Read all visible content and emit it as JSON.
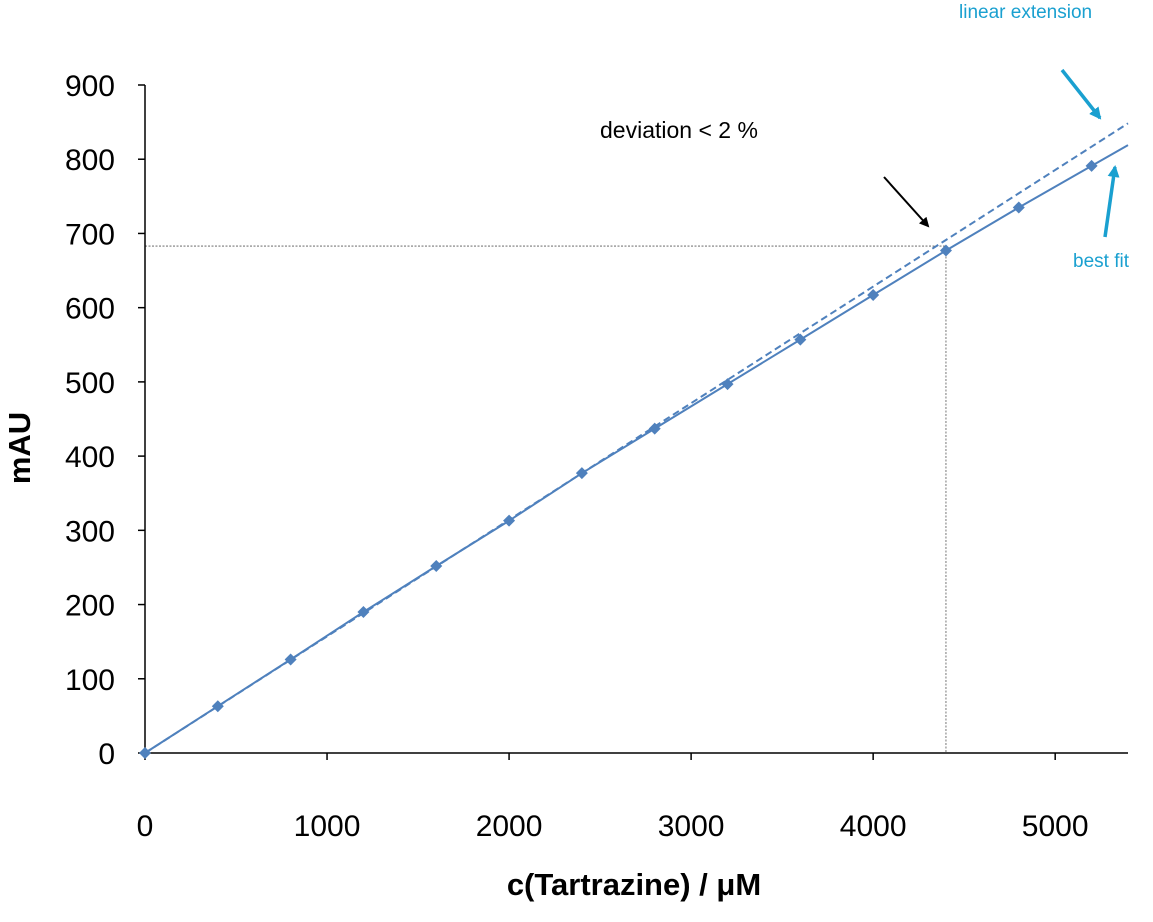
{
  "chart_data": {
    "type": "scatter",
    "xlabel": "c(Tartrazine)  /  μM",
    "ylabel": "mAU",
    "xlim": [
      0,
      5400
    ],
    "ylim": [
      0,
      900
    ],
    "x_ticks": [
      0,
      1000,
      2000,
      3000,
      4000,
      5000
    ],
    "y_ticks": [
      0,
      100,
      200,
      300,
      400,
      500,
      600,
      700,
      800,
      900
    ],
    "grid": false,
    "series": [
      {
        "style": "markers with solid curve",
        "color": "#4f81bd",
        "x": [
          0,
          400,
          800,
          1200,
          1600,
          2000,
          2400,
          2800,
          3200,
          3600,
          4000,
          4400,
          4800,
          5200
        ],
        "values": [
          0,
          63,
          126,
          190,
          252,
          313,
          377,
          437,
          497,
          557,
          617,
          677,
          735,
          791
        ]
      }
    ],
    "lines": [
      {
        "style": "dashed",
        "color": "#4f81bd",
        "slope": 0.1571,
        "intercept": 0
      },
      {
        "style": "solid",
        "color": "#4f81bd",
        "curve": "best fit through points"
      }
    ],
    "reference_lines": {
      "x": 4400,
      "y": 683
    },
    "annotations": [
      {
        "text": "deviation < 2 %",
        "color": "#000000"
      },
      {
        "text": "linear extension",
        "color": "#1aa0d0"
      },
      {
        "text": "best fit",
        "color": "#1aa0d0"
      }
    ]
  }
}
